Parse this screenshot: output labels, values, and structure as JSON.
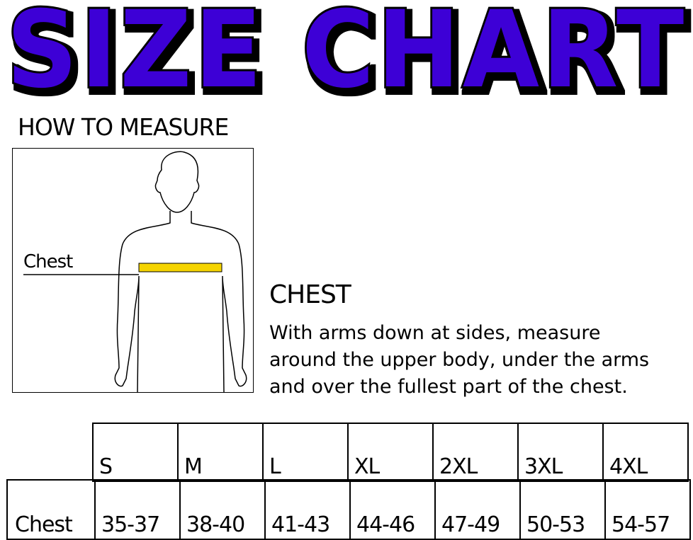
{
  "title": "SIZE CHART",
  "title_color": "#3d00d6",
  "how_to_measure": "HOW TO MEASURE",
  "figure": {
    "chest_label": "Chest",
    "tape_color": "#f5d400"
  },
  "section": {
    "title": "CHEST",
    "lines": [
      "With arms down at sides, measure",
      "around the upper body, under the arms",
      "and over the fullest part of the chest."
    ]
  },
  "table": {
    "sizes": [
      "S",
      "M",
      "L",
      "XL",
      "2XL",
      "3XL",
      "4XL"
    ],
    "row_label": "Chest",
    "values": [
      "35-37",
      "38-40",
      "41-43",
      "44-46",
      "47-49",
      "50-53",
      "54-57"
    ]
  }
}
